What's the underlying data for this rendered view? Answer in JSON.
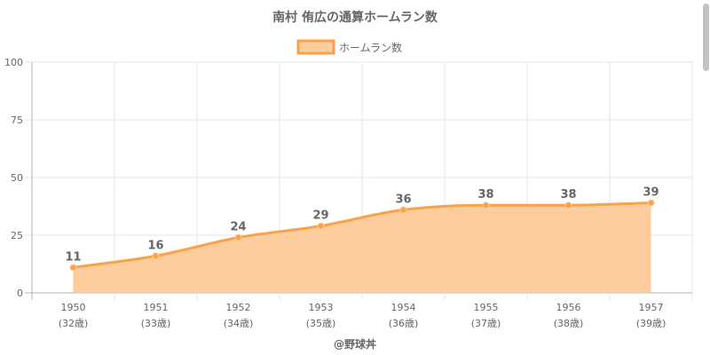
{
  "chart_data": {
    "type": "area",
    "title": "南村 侑広の通算ホームラン数",
    "legend": {
      "label": "ホームラン数",
      "placement": "top-center"
    },
    "categories": [
      "1950",
      "1951",
      "1952",
      "1953",
      "1954",
      "1955",
      "1956",
      "1957"
    ],
    "sublabels": [
      "(32歳)",
      "(33歳)",
      "(34歳)",
      "(35歳)",
      "(36歳)",
      "(37歳)",
      "(38歳)",
      "(39歳)"
    ],
    "series": [
      {
        "name": "ホームラン数",
        "values": [
          11,
          16,
          24,
          29,
          36,
          38,
          38,
          39
        ]
      }
    ],
    "ylim": [
      0,
      100
    ],
    "yticks": [
      0,
      25,
      50,
      75,
      100
    ],
    "grid": true,
    "colors": {
      "line": "#f9a247",
      "fill": "#fdcd9e",
      "label": "#666666",
      "grid": "#e6e6e6"
    },
    "credit": "@野球丼"
  }
}
